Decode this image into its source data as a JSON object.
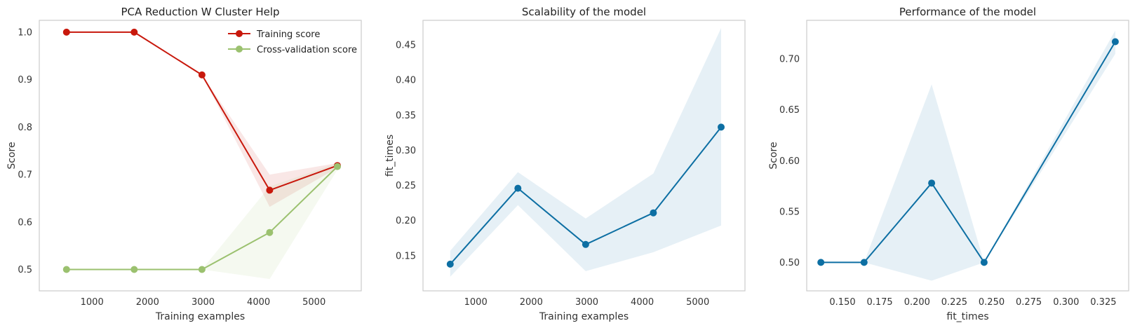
{
  "chart_data": [
    {
      "type": "line",
      "title": "PCA Reduction W Cluster Help",
      "xlabel": "Training examples",
      "ylabel": "Score",
      "xlim": [
        50,
        5850
      ],
      "ylim": [
        0.455,
        1.025
      ],
      "xticks": [
        1000,
        2000,
        3000,
        4000,
        5000
      ],
      "yticks": [
        0.5,
        0.6,
        0.7,
        0.8,
        0.9,
        1.0
      ],
      "xtick_labels": [
        "1000",
        "2000",
        "3000",
        "4000",
        "5000"
      ],
      "ytick_labels": [
        "0.5",
        "0.6",
        "0.7",
        "0.8",
        "0.9",
        "1.0"
      ],
      "grid": false,
      "legend": "top-right",
      "x": [
        540,
        1760,
        2980,
        4200,
        5420
      ],
      "series": [
        {
          "name": "Training score",
          "color": "#c8180c",
          "values": [
            1.0,
            1.0,
            0.91,
            0.667,
            0.719
          ],
          "band_low": [
            1.0,
            1.0,
            0.91,
            0.632,
            0.714
          ],
          "band_high": [
            1.0,
            1.0,
            0.91,
            0.7,
            0.724
          ]
        },
        {
          "name": "Cross-validation score",
          "color": "#9bc16f",
          "values": [
            0.5,
            0.5,
            0.5,
            0.578,
            0.717
          ],
          "band_low": [
            0.5,
            0.5,
            0.5,
            0.48,
            0.71
          ],
          "band_high": [
            0.5,
            0.5,
            0.5,
            0.675,
            0.724
          ]
        }
      ]
    },
    {
      "type": "line",
      "title": "Scalability of the model",
      "xlabel": "Training examples",
      "ylabel": "fit_times",
      "xlim": [
        50,
        5850
      ],
      "ylim": [
        0.1,
        0.485
      ],
      "xticks": [
        1000,
        2000,
        3000,
        4000,
        5000
      ],
      "yticks": [
        0.15,
        0.2,
        0.25,
        0.3,
        0.35,
        0.4,
        0.45
      ],
      "xtick_labels": [
        "1000",
        "2000",
        "3000",
        "4000",
        "5000"
      ],
      "ytick_labels": [
        "0.15",
        "0.20",
        "0.25",
        "0.30",
        "0.35",
        "0.40",
        "0.45"
      ],
      "grid": false,
      "x": [
        540,
        1760,
        2980,
        4200,
        5420
      ],
      "series": [
        {
          "color": "#0d6fa3",
          "values": [
            0.138,
            0.246,
            0.166,
            0.211,
            0.333
          ],
          "band_low": [
            0.12,
            0.222,
            0.128,
            0.155,
            0.193
          ],
          "band_high": [
            0.157,
            0.269,
            0.203,
            0.267,
            0.474
          ]
        }
      ]
    },
    {
      "type": "line",
      "title": "Performance of the model",
      "xlabel": "fit_times",
      "ylabel": "Score",
      "xlim": [
        0.126,
        0.342
      ],
      "ylim": [
        0.472,
        0.738
      ],
      "xticks": [
        0.15,
        0.175,
        0.2,
        0.225,
        0.25,
        0.275,
        0.3,
        0.325
      ],
      "yticks": [
        0.5,
        0.55,
        0.6,
        0.65,
        0.7
      ],
      "xtick_labels": [
        "0.150",
        "0.175",
        "0.200",
        "0.225",
        "0.250",
        "0.275",
        "0.300",
        "0.325"
      ],
      "ytick_labels": [
        "0.50",
        "0.55",
        "0.60",
        "0.65",
        "0.70"
      ],
      "grid": false,
      "series": [
        {
          "color": "#0d6fa3",
          "x": [
            0.1355,
            0.1645,
            0.2098,
            0.245,
            0.333
          ],
          "values": [
            0.5,
            0.5,
            0.578,
            0.5,
            0.717
          ],
          "band_low": [
            0.5,
            0.5,
            0.482,
            0.5,
            0.705
          ],
          "band_high": [
            0.5,
            0.5,
            0.675,
            0.5,
            0.728
          ]
        }
      ]
    }
  ]
}
